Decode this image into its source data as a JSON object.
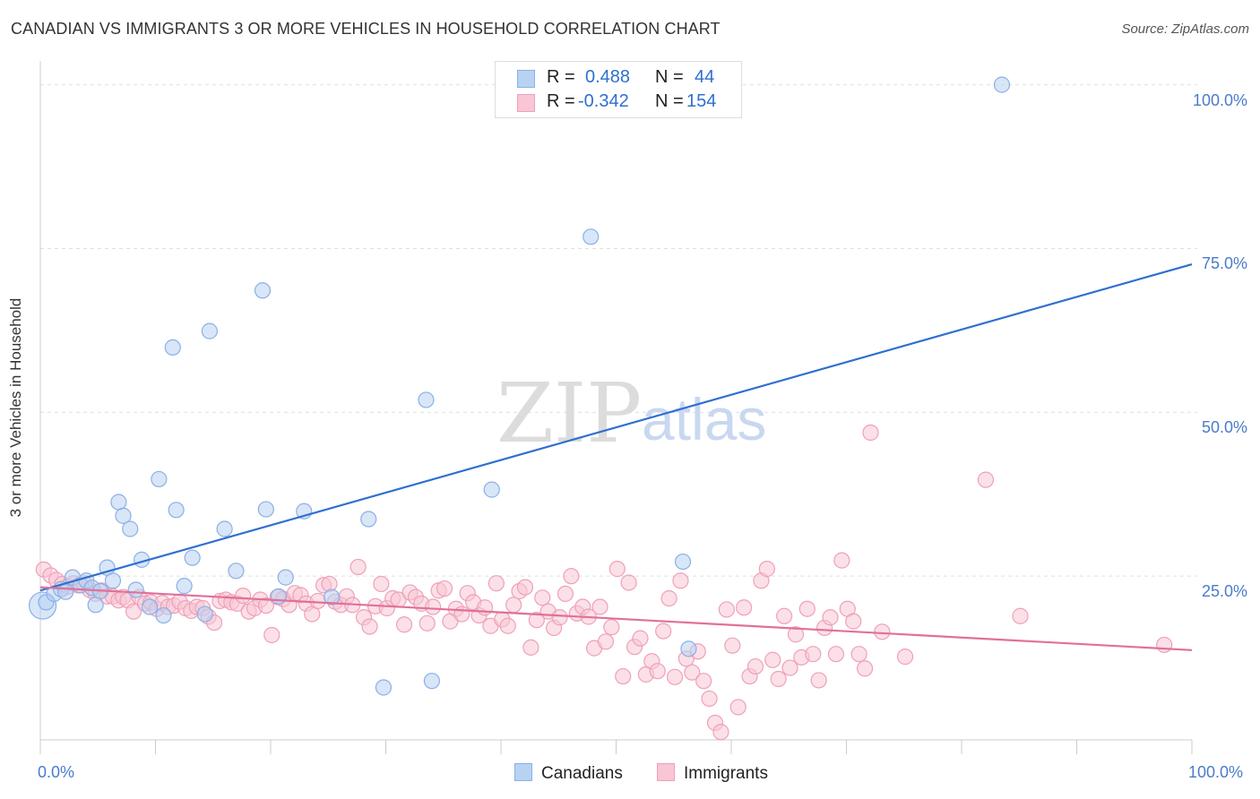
{
  "header": {
    "title": "CANADIAN VS IMMIGRANTS 3 OR MORE VEHICLES IN HOUSEHOLD CORRELATION CHART",
    "source": "Source: ZipAtlas.com"
  },
  "watermark": {
    "zip": "ZIP",
    "atlas": "atlas"
  },
  "legend": {
    "r_label": "R =",
    "n_label": "N =",
    "rows": [
      {
        "name": "Canadians",
        "r": "0.488",
        "n": "44",
        "color": "#a9c8f0"
      },
      {
        "name": "Immigrants",
        "r": "-0.342",
        "n": "154",
        "color": "#f5b8ca"
      }
    ]
  },
  "bottom_legend": {
    "canadians": "Canadians",
    "immigrants": "Immigrants"
  },
  "colors": {
    "canadians_fill": "#b8d2f3",
    "canadians_stroke": "#8ab0e6",
    "canadians_line": "#2f6fd0",
    "immigrants_fill": "#f8c6d4",
    "immigrants_stroke": "#efa0b8",
    "immigrants_line": "#e0709a",
    "tick_text": "#4a7cc9",
    "grid": "#e0e0e0"
  },
  "chart_data": {
    "type": "scatter",
    "title": "CANADIAN VS IMMIGRANTS 3 OR MORE VEHICLES IN HOUSEHOLD CORRELATION CHART",
    "xlabel": "",
    "ylabel": "3 or more Vehicles in Household",
    "xlim": [
      0,
      100
    ],
    "ylim": [
      0,
      102
    ],
    "x_tick_labels": [
      "0.0%",
      "100.0%"
    ],
    "y_tick_labels": [
      "25.0%",
      "50.0%",
      "75.0%",
      "100.0%"
    ],
    "y_ticks": [
      25,
      50,
      75,
      100
    ],
    "grid": "horizontal dashed",
    "legend_position": "top-center",
    "series": [
      {
        "name": "Canadians",
        "r": 0.488,
        "n": 44,
        "trend": {
          "x": [
            0,
            100
          ],
          "y": [
            22.8,
            72.6
          ]
        },
        "points": [
          [
            0.2,
            20.5
          ],
          [
            0.5,
            21.0
          ],
          [
            1.2,
            22.3
          ],
          [
            1.8,
            23.0
          ],
          [
            2.2,
            22.6
          ],
          [
            2.8,
            24.8
          ],
          [
            3.5,
            23.6
          ],
          [
            4.0,
            24.3
          ],
          [
            4.5,
            23.2
          ],
          [
            4.8,
            20.6
          ],
          [
            5.2,
            22.7
          ],
          [
            5.8,
            26.3
          ],
          [
            6.3,
            24.3
          ],
          [
            6.8,
            36.3
          ],
          [
            7.2,
            34.2
          ],
          [
            7.8,
            32.2
          ],
          [
            8.3,
            22.9
          ],
          [
            8.8,
            27.5
          ],
          [
            9.5,
            20.3
          ],
          [
            10.3,
            39.8
          ],
          [
            10.7,
            19.0
          ],
          [
            11.5,
            59.9
          ],
          [
            11.8,
            35.1
          ],
          [
            12.5,
            23.5
          ],
          [
            13.2,
            27.8
          ],
          [
            14.3,
            19.2
          ],
          [
            14.7,
            62.4
          ],
          [
            16.0,
            32.2
          ],
          [
            17.0,
            25.8
          ],
          [
            19.3,
            68.6
          ],
          [
            19.6,
            35.2
          ],
          [
            20.7,
            21.9
          ],
          [
            21.3,
            24.8
          ],
          [
            22.9,
            34.9
          ],
          [
            25.3,
            21.8
          ],
          [
            28.5,
            33.7
          ],
          [
            29.8,
            8.0
          ],
          [
            33.5,
            51.9
          ],
          [
            34.0,
            9.0
          ],
          [
            39.2,
            38.2
          ],
          [
            47.8,
            76.8
          ],
          [
            55.8,
            27.2
          ],
          [
            56.3,
            13.9
          ],
          [
            83.5,
            100.0
          ]
        ]
      },
      {
        "name": "Immigrants",
        "r": -0.342,
        "n": 154,
        "trend": {
          "x": [
            0,
            100
          ],
          "y": [
            23.3,
            13.7
          ]
        },
        "points": [
          [
            0.3,
            26.0
          ],
          [
            0.9,
            25.1
          ],
          [
            1.4,
            24.4
          ],
          [
            1.9,
            23.8
          ],
          [
            2.4,
            23.4
          ],
          [
            2.9,
            23.9
          ],
          [
            3.3,
            23.6
          ],
          [
            3.8,
            23.9
          ],
          [
            4.3,
            22.9
          ],
          [
            4.8,
            22.3
          ],
          [
            5.3,
            22.8
          ],
          [
            5.8,
            21.9
          ],
          [
            6.3,
            21.9
          ],
          [
            6.8,
            21.3
          ],
          [
            7.2,
            21.8
          ],
          [
            7.6,
            21.3
          ],
          [
            8.1,
            19.6
          ],
          [
            8.6,
            21.8
          ],
          [
            9.1,
            20.8
          ],
          [
            9.6,
            21.0
          ],
          [
            10.1,
            20.0
          ],
          [
            10.6,
            20.9
          ],
          [
            11.1,
            20.3
          ],
          [
            11.6,
            20.5
          ],
          [
            12.1,
            21.1
          ],
          [
            12.6,
            20.1
          ],
          [
            13.1,
            19.7
          ],
          [
            13.6,
            20.3
          ],
          [
            14.1,
            20.1
          ],
          [
            14.6,
            18.8
          ],
          [
            15.1,
            17.9
          ],
          [
            15.6,
            21.2
          ],
          [
            16.1,
            21.4
          ],
          [
            16.6,
            21.0
          ],
          [
            17.1,
            20.8
          ],
          [
            17.6,
            22.0
          ],
          [
            18.1,
            19.6
          ],
          [
            18.6,
            20.1
          ],
          [
            19.1,
            21.4
          ],
          [
            19.6,
            20.5
          ],
          [
            20.1,
            16.0
          ],
          [
            20.6,
            21.8
          ],
          [
            21.1,
            21.5
          ],
          [
            21.6,
            20.6
          ],
          [
            22.1,
            22.4
          ],
          [
            22.6,
            22.1
          ],
          [
            23.1,
            20.8
          ],
          [
            23.6,
            19.2
          ],
          [
            24.1,
            21.2
          ],
          [
            24.6,
            23.6
          ],
          [
            25.1,
            23.8
          ],
          [
            25.6,
            21.1
          ],
          [
            26.1,
            20.6
          ],
          [
            26.6,
            21.9
          ],
          [
            27.1,
            20.6
          ],
          [
            27.6,
            26.4
          ],
          [
            28.1,
            18.7
          ],
          [
            28.6,
            17.3
          ],
          [
            29.1,
            20.4
          ],
          [
            29.6,
            23.8
          ],
          [
            30.1,
            20.1
          ],
          [
            30.6,
            21.6
          ],
          [
            31.1,
            21.4
          ],
          [
            31.6,
            17.6
          ],
          [
            32.1,
            22.5
          ],
          [
            32.6,
            21.8
          ],
          [
            33.1,
            20.8
          ],
          [
            33.6,
            17.8
          ],
          [
            34.1,
            20.3
          ],
          [
            34.6,
            22.8
          ],
          [
            35.1,
            23.1
          ],
          [
            35.6,
            18.1
          ],
          [
            36.1,
            20.0
          ],
          [
            36.6,
            19.2
          ],
          [
            37.1,
            22.4
          ],
          [
            37.6,
            21.0
          ],
          [
            38.1,
            19.0
          ],
          [
            38.6,
            20.2
          ],
          [
            39.1,
            17.4
          ],
          [
            39.6,
            23.9
          ],
          [
            40.1,
            18.4
          ],
          [
            40.6,
            17.4
          ],
          [
            41.1,
            20.6
          ],
          [
            41.6,
            22.7
          ],
          [
            42.1,
            23.3
          ],
          [
            42.6,
            14.1
          ],
          [
            43.1,
            18.3
          ],
          [
            43.6,
            21.7
          ],
          [
            44.1,
            19.6
          ],
          [
            44.6,
            17.1
          ],
          [
            45.1,
            18.7
          ],
          [
            45.6,
            22.3
          ],
          [
            46.1,
            25.0
          ],
          [
            46.6,
            19.3
          ],
          [
            47.1,
            20.3
          ],
          [
            47.6,
            18.8
          ],
          [
            48.1,
            14.0
          ],
          [
            48.6,
            20.3
          ],
          [
            49.1,
            15.0
          ],
          [
            49.6,
            17.2
          ],
          [
            50.1,
            26.1
          ],
          [
            50.6,
            9.7
          ],
          [
            51.1,
            24.0
          ],
          [
            51.6,
            14.2
          ],
          [
            52.1,
            15.5
          ],
          [
            52.6,
            10.0
          ],
          [
            53.1,
            12.0
          ],
          [
            53.6,
            10.5
          ],
          [
            54.1,
            16.6
          ],
          [
            54.6,
            21.6
          ],
          [
            55.1,
            9.6
          ],
          [
            55.6,
            24.3
          ],
          [
            56.1,
            12.4
          ],
          [
            56.6,
            10.3
          ],
          [
            57.1,
            13.5
          ],
          [
            57.6,
            9.0
          ],
          [
            58.1,
            6.3
          ],
          [
            58.6,
            2.6
          ],
          [
            59.1,
            1.2
          ],
          [
            59.6,
            19.9
          ],
          [
            60.1,
            14.4
          ],
          [
            60.6,
            5.0
          ],
          [
            61.1,
            20.2
          ],
          [
            61.6,
            9.7
          ],
          [
            62.1,
            11.2
          ],
          [
            62.6,
            24.3
          ],
          [
            63.1,
            26.1
          ],
          [
            63.6,
            12.2
          ],
          [
            64.1,
            9.3
          ],
          [
            64.6,
            18.9
          ],
          [
            65.1,
            11.0
          ],
          [
            65.6,
            16.1
          ],
          [
            66.1,
            12.6
          ],
          [
            66.6,
            20.0
          ],
          [
            67.1,
            13.1
          ],
          [
            67.6,
            9.1
          ],
          [
            68.1,
            17.1
          ],
          [
            68.6,
            18.7
          ],
          [
            69.1,
            13.1
          ],
          [
            69.6,
            27.4
          ],
          [
            70.1,
            20.0
          ],
          [
            70.6,
            18.1
          ],
          [
            71.1,
            13.1
          ],
          [
            71.6,
            10.9
          ],
          [
            72.1,
            46.9
          ],
          [
            73.1,
            16.5
          ],
          [
            75.1,
            12.7
          ],
          [
            82.1,
            39.7
          ],
          [
            85.1,
            18.9
          ],
          [
            97.6,
            14.5
          ]
        ]
      }
    ]
  }
}
